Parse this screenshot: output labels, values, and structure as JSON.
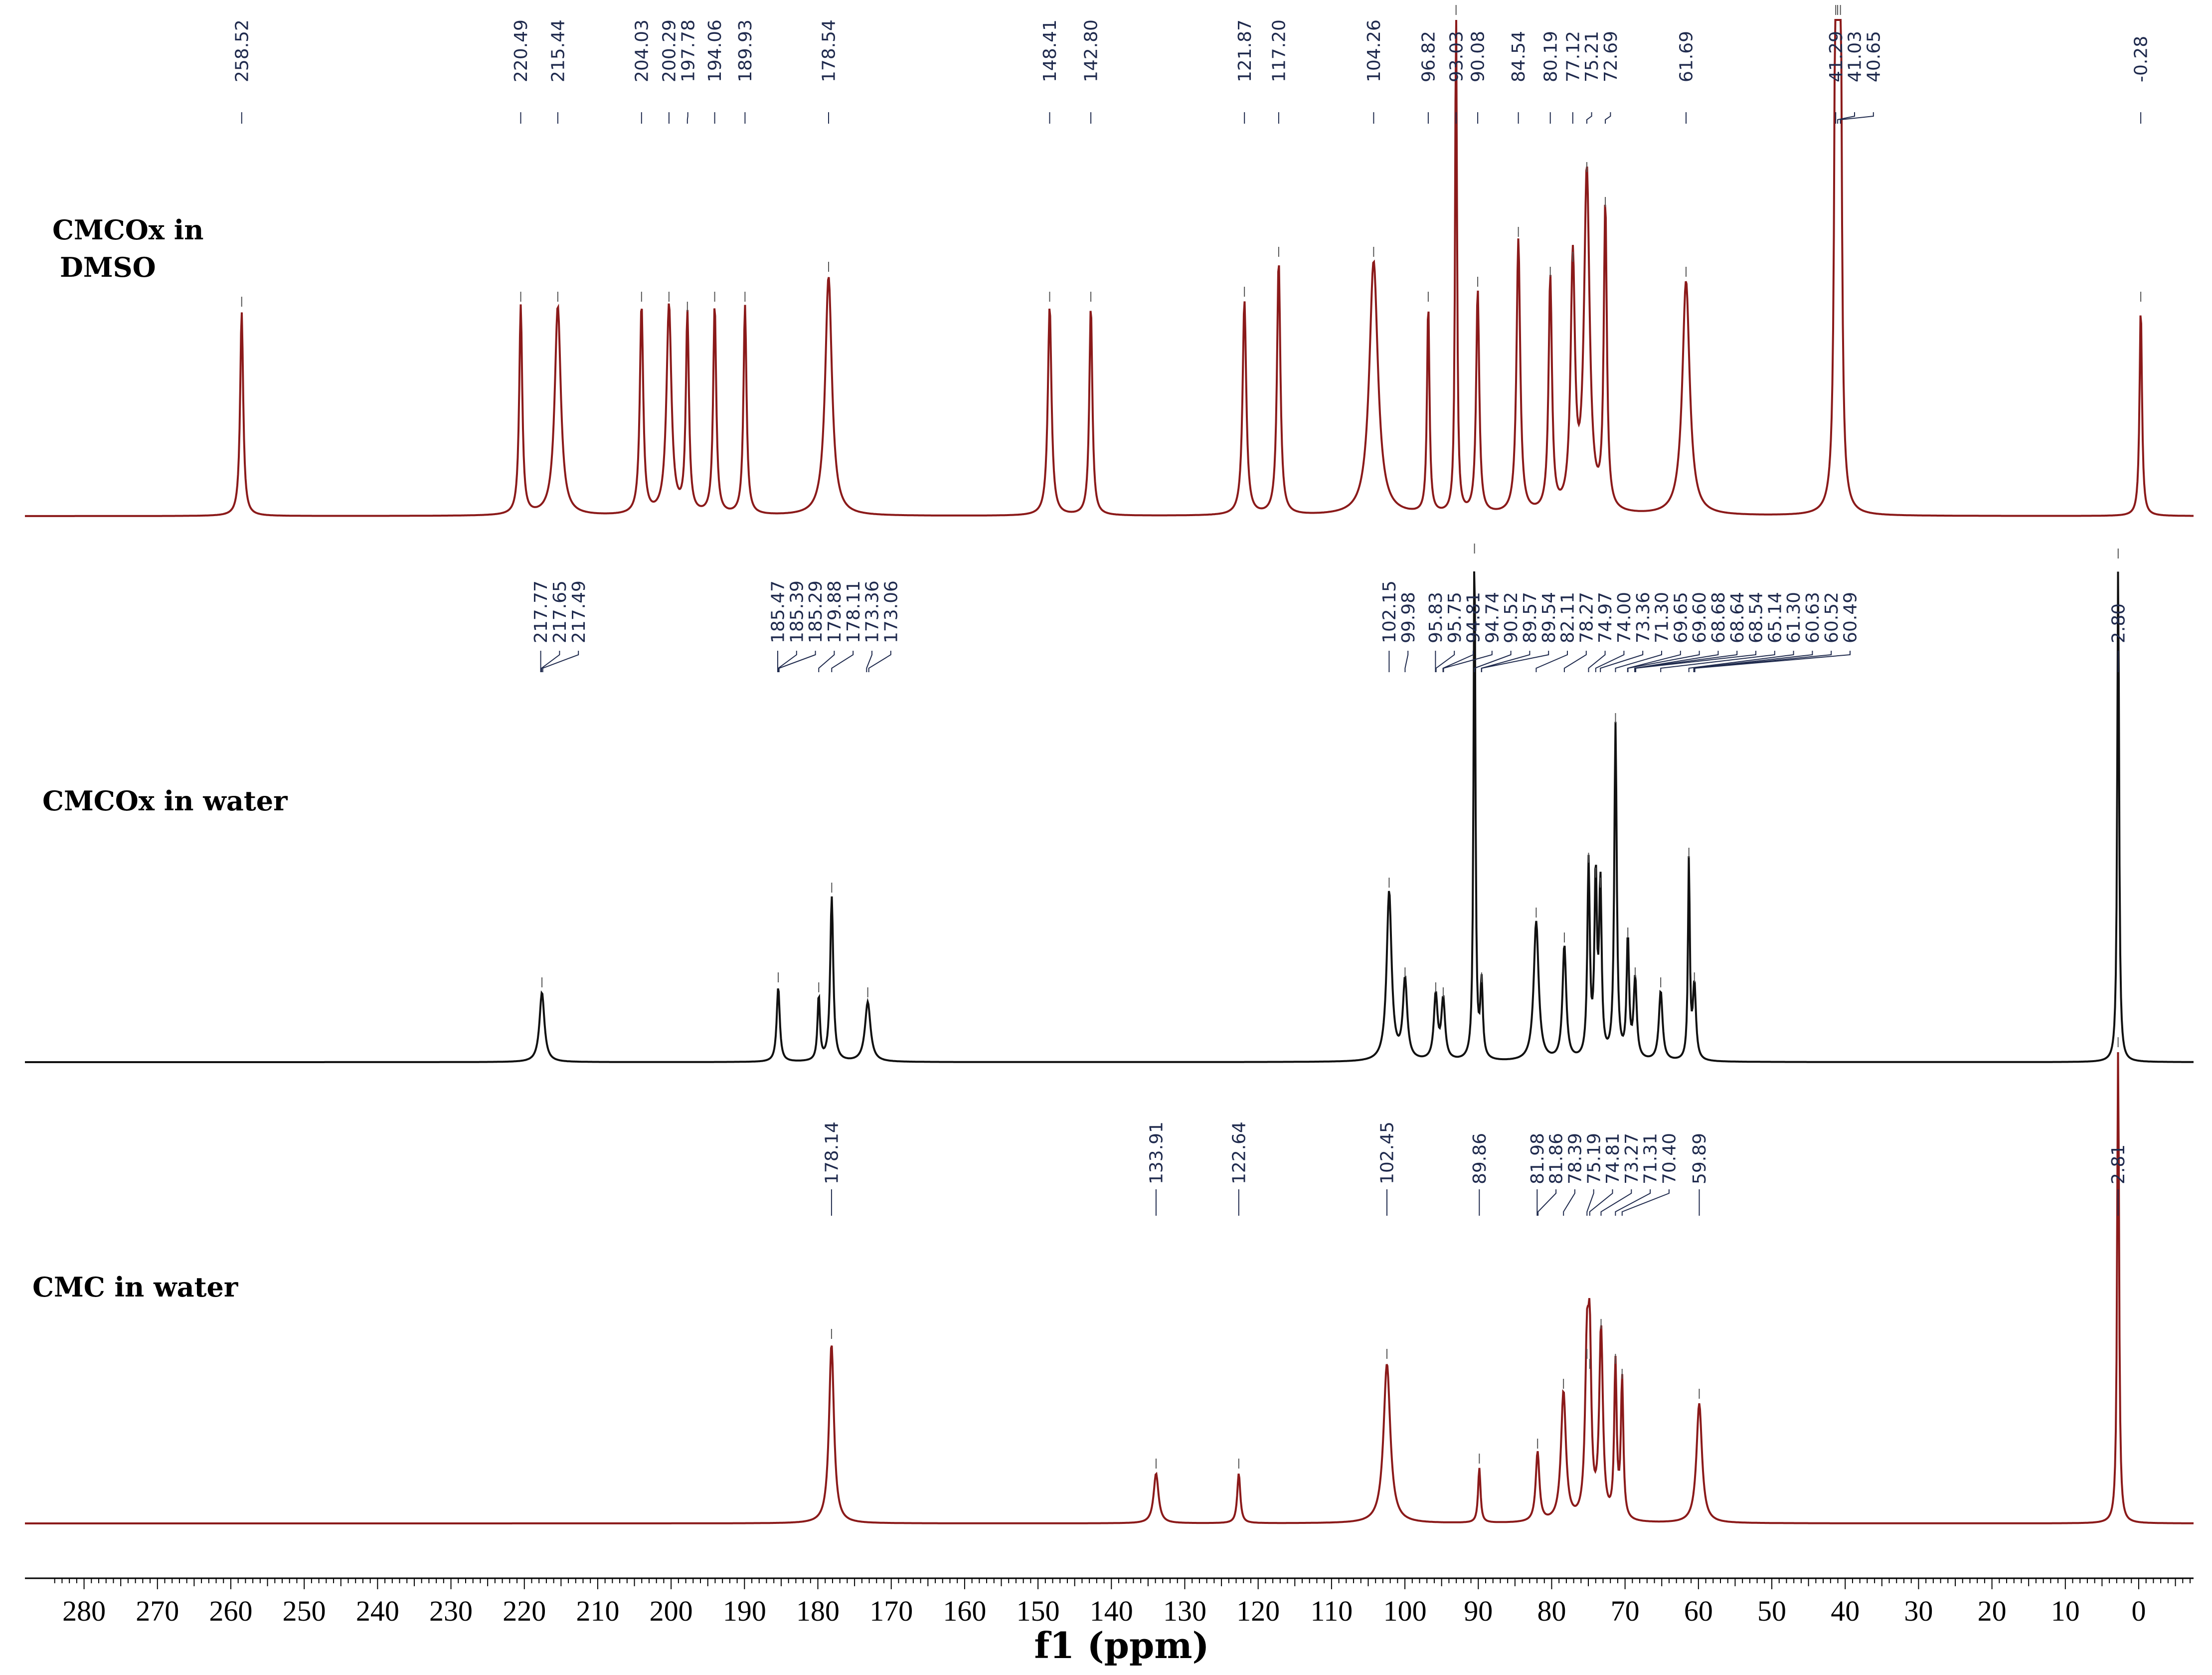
{
  "chart_data": {
    "type": "line",
    "title": "",
    "xlabel": "f1 (ppm)",
    "ylabel": "",
    "xlim": [
      285,
      -8
    ],
    "x_direction": "reversed",
    "x_ticks": [
      280,
      270,
      260,
      250,
      240,
      230,
      220,
      210,
      200,
      190,
      180,
      170,
      160,
      150,
      140,
      130,
      120,
      110,
      100,
      90,
      80,
      70,
      60,
      50,
      40,
      30,
      20,
      10,
      0
    ],
    "series": [
      {
        "name": "CMCOx in DMSO",
        "label_lines": [
          "CMCOx in",
          "DMSO"
        ],
        "line_color": "#8b1a1a",
        "peak_labels": [
          "258.52",
          "220.49",
          "215.44",
          "204.03",
          "200.29",
          "197.78",
          "194.06",
          "189.93",
          "178.54",
          "148.41",
          "142.80",
          "121.87",
          "117.20",
          "104.26",
          "96.82",
          "93.03",
          "90.08",
          "84.54",
          "80.19",
          "77.12",
          "75.21",
          "72.69",
          "61.69",
          "41.29",
          "41.03",
          "40.65",
          "-0.28"
        ],
        "peaks": [
          {
            "ppm": 258.52,
            "height": 0.41,
            "width": 0.5
          },
          {
            "ppm": 220.49,
            "height": 0.42,
            "width": 0.5
          },
          {
            "ppm": 215.44,
            "height": 0.42,
            "width": 1.0
          },
          {
            "ppm": 204.03,
            "height": 0.42,
            "width": 0.55
          },
          {
            "ppm": 200.29,
            "height": 0.42,
            "width": 0.8
          },
          {
            "ppm": 197.78,
            "height": 0.4,
            "width": 0.5
          },
          {
            "ppm": 194.06,
            "height": 0.42,
            "width": 0.5
          },
          {
            "ppm": 189.93,
            "height": 0.42,
            "width": 0.5
          },
          {
            "ppm": 178.54,
            "height": 0.48,
            "width": 1.1
          },
          {
            "ppm": 148.41,
            "height": 0.42,
            "width": 0.6
          },
          {
            "ppm": 142.8,
            "height": 0.42,
            "width": 0.5
          },
          {
            "ppm": 121.87,
            "height": 0.43,
            "width": 0.6
          },
          {
            "ppm": 117.2,
            "height": 0.51,
            "width": 0.55
          },
          {
            "ppm": 104.26,
            "height": 0.51,
            "width": 1.4
          },
          {
            "ppm": 96.82,
            "height": 0.42,
            "width": 0.4
          },
          {
            "ppm": 93.03,
            "height": 1.05,
            "width": 0.3
          },
          {
            "ppm": 90.08,
            "height": 0.45,
            "width": 0.5
          },
          {
            "ppm": 84.54,
            "height": 0.55,
            "width": 0.6
          },
          {
            "ppm": 80.19,
            "height": 0.47,
            "width": 0.55
          },
          {
            "ppm": 77.12,
            "height": 0.5,
            "width": 0.7
          },
          {
            "ppm": 75.21,
            "height": 0.68,
            "width": 0.9
          },
          {
            "ppm": 72.69,
            "height": 0.61,
            "width": 0.5
          },
          {
            "ppm": 61.69,
            "height": 0.47,
            "width": 1.2
          },
          {
            "ppm": 41.29,
            "height": 1.0,
            "width": 0.4
          },
          {
            "ppm": 41.03,
            "height": 1.0,
            "width": 0.4
          },
          {
            "ppm": 40.65,
            "height": 1.0,
            "width": 0.4
          },
          {
            "ppm": -0.28,
            "height": 0.42,
            "width": 0.4
          }
        ]
      },
      {
        "name": "CMCOx in water",
        "line_color": "#111111",
        "peak_labels": [
          "217.77",
          "217.65",
          "217.49",
          "185.47",
          "185.39",
          "185.29",
          "179.88",
          "178.11",
          "173.36",
          "173.06",
          "102.15",
          "99.98",
          "95.83",
          "95.75",
          "94.81",
          "94.74",
          "90.52",
          "89.57",
          "89.54",
          "82.11",
          "78.27",
          "74.97",
          "74.00",
          "73.36",
          "71.30",
          "69.65",
          "69.60",
          "68.68",
          "68.64",
          "68.54",
          "65.14",
          "61.30",
          "60.63",
          "60.52",
          "60.49",
          "2.80"
        ],
        "peaks": [
          {
            "ppm": 217.6,
            "height": 0.14,
            "width": 0.8
          },
          {
            "ppm": 185.4,
            "height": 0.15,
            "width": 0.5
          },
          {
            "ppm": 179.88,
            "height": 0.13,
            "width": 0.4
          },
          {
            "ppm": 178.11,
            "height": 0.33,
            "width": 0.5
          },
          {
            "ppm": 173.2,
            "height": 0.12,
            "width": 0.9
          },
          {
            "ppm": 102.15,
            "height": 0.34,
            "width": 0.8
          },
          {
            "ppm": 99.98,
            "height": 0.16,
            "width": 0.7
          },
          {
            "ppm": 95.8,
            "height": 0.13,
            "width": 0.6
          },
          {
            "ppm": 94.78,
            "height": 0.12,
            "width": 0.6
          },
          {
            "ppm": 90.52,
            "height": 1.05,
            "width": 0.3
          },
          {
            "ppm": 89.55,
            "height": 0.15,
            "width": 0.4
          },
          {
            "ppm": 82.11,
            "height": 0.28,
            "width": 0.8
          },
          {
            "ppm": 78.27,
            "height": 0.23,
            "width": 0.6
          },
          {
            "ppm": 74.97,
            "height": 0.39,
            "width": 0.4
          },
          {
            "ppm": 74.0,
            "height": 0.36,
            "width": 0.4
          },
          {
            "ppm": 73.36,
            "height": 0.34,
            "width": 0.4
          },
          {
            "ppm": 71.3,
            "height": 0.67,
            "width": 0.4
          },
          {
            "ppm": 69.62,
            "height": 0.24,
            "width": 0.4
          },
          {
            "ppm": 68.62,
            "height": 0.16,
            "width": 0.5
          },
          {
            "ppm": 65.14,
            "height": 0.14,
            "width": 0.6
          },
          {
            "ppm": 61.3,
            "height": 0.4,
            "width": 0.3
          },
          {
            "ppm": 60.55,
            "height": 0.15,
            "width": 0.5
          },
          {
            "ppm": 2.8,
            "height": 1.0,
            "width": 0.3
          }
        ]
      },
      {
        "name": "CMC in water",
        "line_color": "#8b1a1a",
        "peak_labels": [
          "178.14",
          "133.91",
          "122.64",
          "102.45",
          "89.86",
          "81.98",
          "81.86",
          "78.39",
          "75.19",
          "74.81",
          "73.27",
          "71.31",
          "70.40",
          "59.89",
          "2.81"
        ],
        "peaks": [
          {
            "ppm": 178.14,
            "height": 0.36,
            "width": 0.8
          },
          {
            "ppm": 133.91,
            "height": 0.1,
            "width": 0.8
          },
          {
            "ppm": 122.64,
            "height": 0.1,
            "width": 0.5
          },
          {
            "ppm": 102.45,
            "height": 0.32,
            "width": 1.1
          },
          {
            "ppm": 89.86,
            "height": 0.11,
            "width": 0.4
          },
          {
            "ppm": 81.92,
            "height": 0.14,
            "width": 0.6
          },
          {
            "ppm": 78.39,
            "height": 0.26,
            "width": 0.8
          },
          {
            "ppm": 75.19,
            "height": 0.32,
            "width": 0.6
          },
          {
            "ppm": 74.81,
            "height": 0.3,
            "width": 0.5
          },
          {
            "ppm": 73.27,
            "height": 0.38,
            "width": 0.6
          },
          {
            "ppm": 71.31,
            "height": 0.31,
            "width": 0.4
          },
          {
            "ppm": 70.4,
            "height": 0.28,
            "width": 0.4
          },
          {
            "ppm": 59.89,
            "height": 0.24,
            "width": 0.9
          },
          {
            "ppm": 2.81,
            "height": 1.0,
            "width": 0.3
          }
        ]
      }
    ]
  }
}
